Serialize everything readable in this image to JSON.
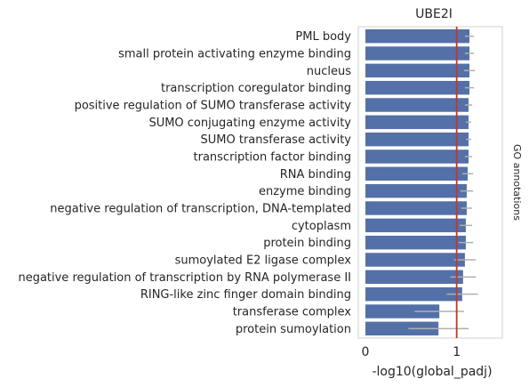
{
  "chart_data": {
    "type": "bar",
    "orientation": "horizontal",
    "title": "UBE2I",
    "xlabel": "-log10(global_padj)",
    "ylabel": "",
    "right_label": "GO annotations",
    "xlim": [
      0,
      1.5
    ],
    "xticks": [
      0,
      1
    ],
    "threshold": 1,
    "grid": false,
    "bar_color": "#5470a8",
    "threshold_color": "#c0392b",
    "error_color": "#b0b0b0",
    "frame_color": "#d0d0d0",
    "categories": [
      "PML body",
      "small protein activating enzyme binding",
      "nucleus",
      "transcription coregulator binding",
      "positive regulation of SUMO transferase activity",
      "SUMO conjugating enzyme activity",
      "SUMO transferase activity",
      "transcription factor binding",
      "RNA binding",
      "enzyme binding",
      "negative regulation of transcription, DNA-templated",
      "cytoplasm",
      "protein binding",
      "sumoylated E2 ligase complex",
      "negative regulation of transcription by RNA polymerase II",
      "RING-like zinc finger domain binding",
      "transferase complex",
      "protein sumoylation"
    ],
    "values": [
      1.14,
      1.14,
      1.14,
      1.14,
      1.13,
      1.13,
      1.13,
      1.13,
      1.12,
      1.11,
      1.11,
      1.1,
      1.1,
      1.09,
      1.07,
      1.06,
      0.81,
      0.8
    ],
    "errors": [
      0.05,
      0.05,
      0.06,
      0.05,
      0.04,
      0.03,
      0.03,
      0.04,
      0.06,
      0.07,
      0.06,
      0.07,
      0.08,
      0.12,
      0.14,
      0.17,
      0.27,
      0.33
    ]
  }
}
